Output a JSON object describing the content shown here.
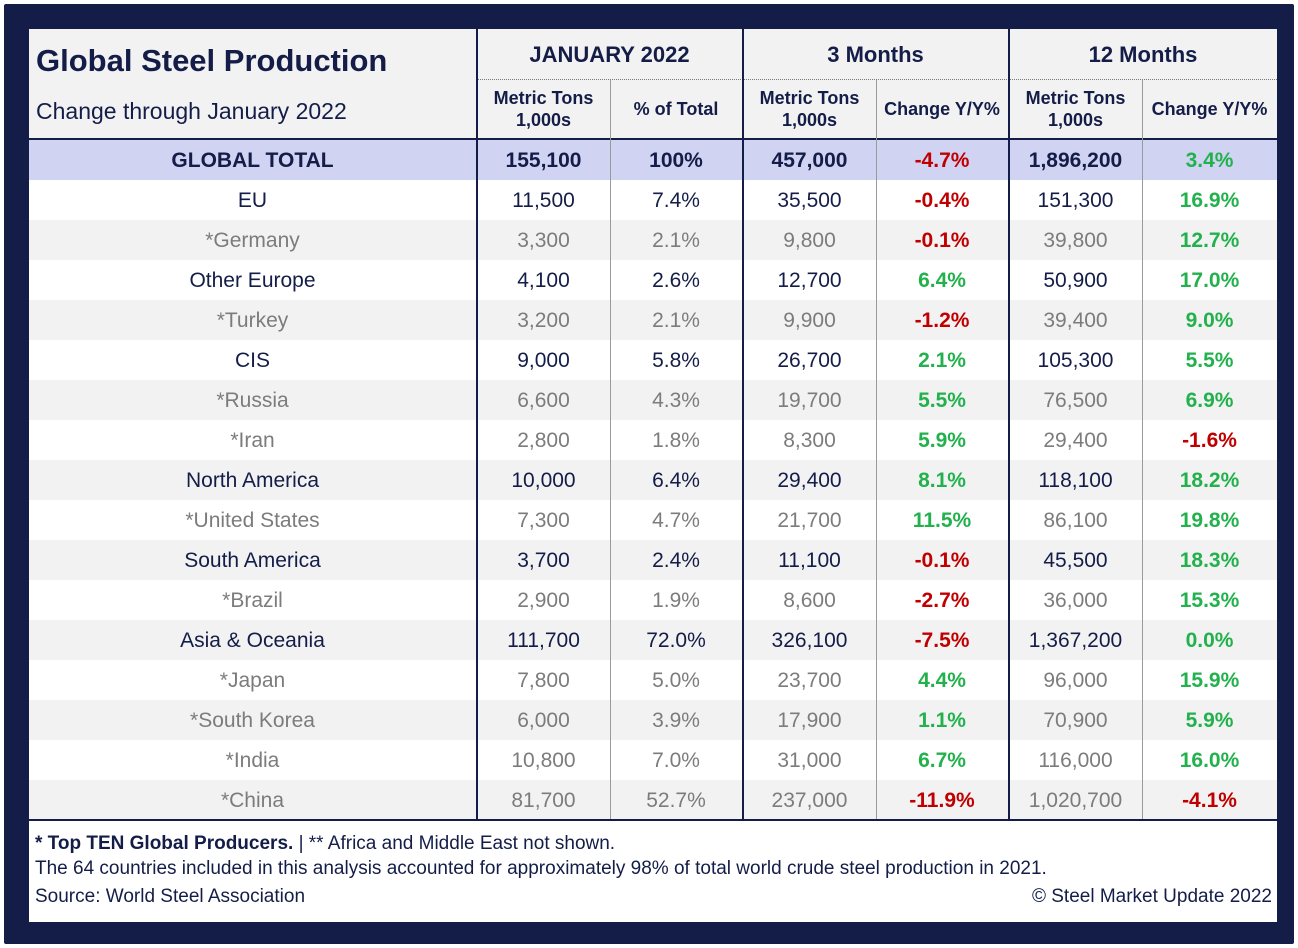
{
  "title": "Global Steel Production",
  "subtitle": "Change through January 2022",
  "groups": [
    "JANUARY 2022",
    "3 Months",
    "12 Months"
  ],
  "columns": [
    {
      "line1": "Metric Tons",
      "line2": "1,000s"
    },
    {
      "line1": "% of Total",
      "line2": ""
    },
    {
      "line1": "Metric Tons",
      "line2": "1,000s"
    },
    {
      "line1": "Change Y/Y%",
      "line2": ""
    },
    {
      "line1": "Metric Tons",
      "line2": "1,000s"
    },
    {
      "line1": "Change Y/Y%",
      "line2": ""
    }
  ],
  "rows": [
    {
      "name": "GLOBAL TOTAL",
      "kind": "total",
      "jan": "155,100",
      "pct": "100%",
      "m3": "457,000",
      "m3chg": "-4.7%",
      "m12": "1,896,200",
      "m12chg": "3.4%"
    },
    {
      "name": "EU",
      "kind": "region",
      "jan": "11,500",
      "pct": "7.4%",
      "m3": "35,500",
      "m3chg": "-0.4%",
      "m12": "151,300",
      "m12chg": "16.9%"
    },
    {
      "name": "*Germany",
      "kind": "country",
      "jan": "3,300",
      "pct": "2.1%",
      "m3": "9,800",
      "m3chg": "-0.1%",
      "m12": "39,800",
      "m12chg": "12.7%"
    },
    {
      "name": "Other Europe",
      "kind": "region",
      "jan": "4,100",
      "pct": "2.6%",
      "m3": "12,700",
      "m3chg": "6.4%",
      "m12": "50,900",
      "m12chg": "17.0%"
    },
    {
      "name": "*Turkey",
      "kind": "country",
      "jan": "3,200",
      "pct": "2.1%",
      "m3": "9,900",
      "m3chg": "-1.2%",
      "m12": "39,400",
      "m12chg": "9.0%"
    },
    {
      "name": "CIS",
      "kind": "region",
      "jan": "9,000",
      "pct": "5.8%",
      "m3": "26,700",
      "m3chg": "2.1%",
      "m12": "105,300",
      "m12chg": "5.5%"
    },
    {
      "name": "*Russia",
      "kind": "country",
      "jan": "6,600",
      "pct": "4.3%",
      "m3": "19,700",
      "m3chg": "5.5%",
      "m12": "76,500",
      "m12chg": "6.9%"
    },
    {
      "name": "*Iran",
      "kind": "country",
      "jan": "2,800",
      "pct": "1.8%",
      "m3": "8,300",
      "m3chg": "5.9%",
      "m12": "29,400",
      "m12chg": "-1.6%"
    },
    {
      "name": "North America",
      "kind": "region",
      "jan": "10,000",
      "pct": "6.4%",
      "m3": "29,400",
      "m3chg": "8.1%",
      "m12": "118,100",
      "m12chg": "18.2%"
    },
    {
      "name": "*United States",
      "kind": "country",
      "jan": "7,300",
      "pct": "4.7%",
      "m3": "21,700",
      "m3chg": "11.5%",
      "m12": "86,100",
      "m12chg": "19.8%"
    },
    {
      "name": "South America",
      "kind": "region",
      "jan": "3,700",
      "pct": "2.4%",
      "m3": "11,100",
      "m3chg": "-0.1%",
      "m12": "45,500",
      "m12chg": "18.3%"
    },
    {
      "name": "*Brazil",
      "kind": "country",
      "jan": "2,900",
      "pct": "1.9%",
      "m3": "8,600",
      "m3chg": "-2.7%",
      "m12": "36,000",
      "m12chg": "15.3%"
    },
    {
      "name": "Asia & Oceania",
      "kind": "region",
      "jan": "111,700",
      "pct": "72.0%",
      "m3": "326,100",
      "m3chg": "-7.5%",
      "m12": "1,367,200",
      "m12chg": "0.0%"
    },
    {
      "name": "*Japan",
      "kind": "country",
      "jan": "7,800",
      "pct": "5.0%",
      "m3": "23,700",
      "m3chg": "4.4%",
      "m12": "96,000",
      "m12chg": "15.9%"
    },
    {
      "name": "*South Korea",
      "kind": "country",
      "jan": "6,000",
      "pct": "3.9%",
      "m3": "17,900",
      "m3chg": "1.1%",
      "m12": "70,900",
      "m12chg": "5.9%"
    },
    {
      "name": "*India",
      "kind": "country",
      "jan": "10,800",
      "pct": "7.0%",
      "m3": "31,000",
      "m3chg": "6.7%",
      "m12": "116,000",
      "m12chg": "16.0%"
    },
    {
      "name": "*China",
      "kind": "country",
      "jan": "81,700",
      "pct": "52.7%",
      "m3": "237,000",
      "m3chg": "-11.9%",
      "m12": "1,020,700",
      "m12chg": "-4.1%"
    }
  ],
  "footer": {
    "note_bold": "* Top TEN Global Producers.",
    "note_rest": " | ** Africa and Middle East not shown.",
    "line2": "The 64 countries included in this analysis accounted for approximately 98% of total world crude steel production in 2021.",
    "source": "Source: World Steel Association",
    "copyright": "© Steel Market Update 2022"
  },
  "colors": {
    "navy": "#141d48",
    "positive": "#22b14c",
    "negative": "#c00000",
    "total_row": "#d0d3f2",
    "country_text": "#7c7c7c"
  }
}
